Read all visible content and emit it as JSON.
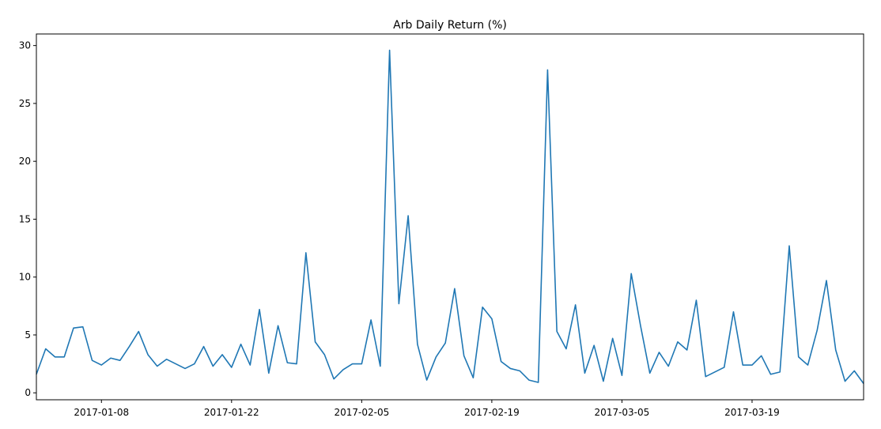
{
  "chart_data": {
    "type": "line",
    "title": "Arb Daily Return (%)",
    "xlabel": "",
    "ylabel": "",
    "x_start": "2017-01-01",
    "x_end": "2017-03-31",
    "ylim": [
      -0.6,
      31.0
    ],
    "yticks": [
      0,
      5,
      10,
      15,
      20,
      25,
      30
    ],
    "xticks": [
      "2017-01-08",
      "2017-01-22",
      "2017-02-05",
      "2017-02-19",
      "2017-03-05",
      "2017-03-19"
    ],
    "grid": false,
    "line_color": "#1f77b4",
    "series": [
      {
        "x": [
          "2017-01-01",
          "2017-01-02",
          "2017-01-03",
          "2017-01-04",
          "2017-01-05",
          "2017-01-06",
          "2017-01-07",
          "2017-01-08",
          "2017-01-09",
          "2017-01-10",
          "2017-01-11",
          "2017-01-12",
          "2017-01-13",
          "2017-01-14",
          "2017-01-15",
          "2017-01-16",
          "2017-01-17",
          "2017-01-18",
          "2017-01-19",
          "2017-01-20",
          "2017-01-21",
          "2017-01-22",
          "2017-01-23",
          "2017-01-24",
          "2017-01-25",
          "2017-01-26",
          "2017-01-27",
          "2017-01-28",
          "2017-01-29",
          "2017-01-30",
          "2017-01-31",
          "2017-02-01",
          "2017-02-02",
          "2017-02-03",
          "2017-02-04",
          "2017-02-05",
          "2017-02-06",
          "2017-02-07",
          "2017-02-08",
          "2017-02-09",
          "2017-02-10",
          "2017-02-11",
          "2017-02-12",
          "2017-02-13",
          "2017-02-14",
          "2017-02-15",
          "2017-02-16",
          "2017-02-17",
          "2017-02-18",
          "2017-02-19",
          "2017-02-20",
          "2017-02-21",
          "2017-02-22",
          "2017-02-23",
          "2017-02-24",
          "2017-02-25",
          "2017-02-26",
          "2017-02-27",
          "2017-02-28",
          "2017-03-01",
          "2017-03-02",
          "2017-03-03",
          "2017-03-04",
          "2017-03-05",
          "2017-03-06",
          "2017-03-07",
          "2017-03-08",
          "2017-03-09",
          "2017-03-10",
          "2017-03-11",
          "2017-03-12",
          "2017-03-13",
          "2017-03-14",
          "2017-03-15",
          "2017-03-16",
          "2017-03-17",
          "2017-03-18",
          "2017-03-19",
          "2017-03-20",
          "2017-03-21",
          "2017-03-22",
          "2017-03-23",
          "2017-03-24",
          "2017-03-25",
          "2017-03-26",
          "2017-03-27",
          "2017-03-28",
          "2017-03-29",
          "2017-03-30",
          "2017-03-31"
        ],
        "values": [
          1.6,
          3.8,
          3.1,
          3.1,
          5.6,
          5.7,
          2.8,
          2.4,
          3.0,
          2.8,
          4.0,
          5.3,
          3.3,
          2.3,
          2.9,
          2.5,
          2.1,
          2.5,
          4.0,
          2.3,
          3.3,
          2.2,
          4.2,
          2.4,
          7.2,
          1.7,
          5.8,
          2.6,
          2.5,
          12.1,
          4.4,
          3.3,
          1.2,
          2.0,
          2.5,
          2.5,
          6.3,
          2.3,
          29.6,
          7.7,
          15.3,
          4.2,
          1.1,
          3.1,
          4.3,
          9.0,
          3.2,
          1.3,
          7.4,
          6.4,
          2.7,
          2.1,
          1.9,
          1.1,
          0.9,
          27.9,
          5.3,
          3.8,
          7.6,
          1.7,
          4.1,
          1.0,
          4.7,
          1.5,
          10.3,
          5.8,
          1.7,
          3.5,
          2.3,
          4.4,
          3.7,
          8.0,
          1.4,
          1.8,
          2.2,
          7.0,
          2.4,
          2.4,
          3.2,
          1.6,
          1.8,
          12.7,
          3.1,
          2.4,
          5.4,
          9.7,
          3.7,
          1.0,
          1.9,
          0.8
        ]
      }
    ]
  }
}
